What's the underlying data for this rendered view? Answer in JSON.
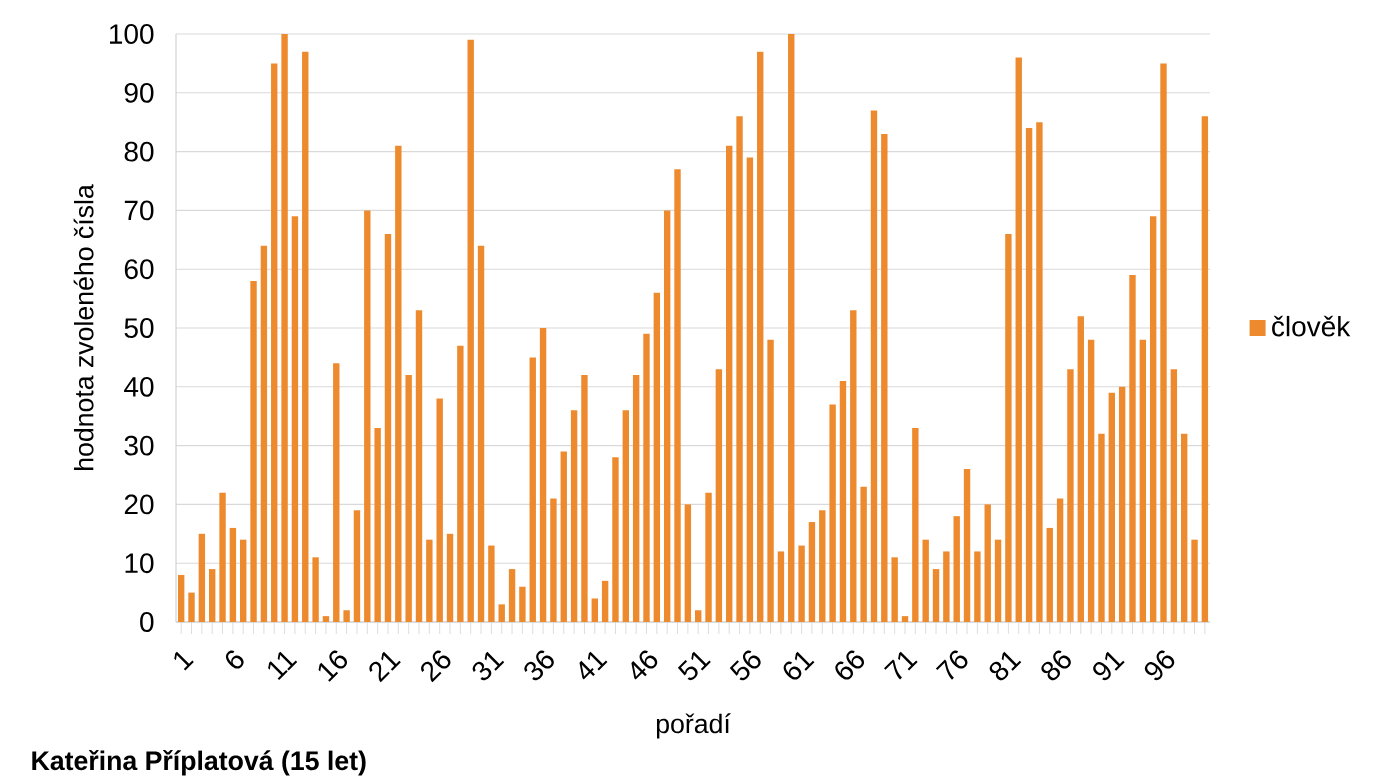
{
  "chart_data": {
    "type": "bar",
    "categories": [
      "1",
      null,
      null,
      null,
      null,
      "6",
      null,
      null,
      null,
      null,
      "11",
      null,
      null,
      null,
      null,
      "16",
      null,
      null,
      null,
      null,
      "21",
      null,
      null,
      null,
      null,
      "26",
      null,
      null,
      null,
      null,
      "31",
      null,
      null,
      null,
      null,
      "36",
      null,
      null,
      null,
      null,
      "41",
      null,
      null,
      null,
      null,
      "46",
      null,
      null,
      null,
      null,
      "51",
      null,
      null,
      null,
      null,
      "56",
      null,
      null,
      null,
      null,
      "61",
      null,
      null,
      null,
      null,
      "66",
      null,
      null,
      null,
      null,
      "71",
      null,
      null,
      null,
      null,
      "76",
      null,
      null,
      null,
      null,
      "81",
      null,
      null,
      null,
      null,
      "86",
      null,
      null,
      null,
      null,
      "91",
      null,
      null,
      null,
      null,
      "96",
      null,
      null,
      null,
      null
    ],
    "series": [
      {
        "name": "člověk",
        "color": "#ee8a2e",
        "values": [
          8,
          5,
          15,
          9,
          22,
          16,
          14,
          58,
          64,
          95,
          100,
          69,
          97,
          11,
          1,
          44,
          2,
          19,
          70,
          33,
          66,
          81,
          42,
          53,
          14,
          38,
          15,
          47,
          99,
          64,
          13,
          3,
          9,
          6,
          45,
          50,
          21,
          29,
          36,
          42,
          4,
          7,
          28,
          36,
          42,
          49,
          56,
          70,
          77,
          20,
          2,
          22,
          43,
          81,
          86,
          79,
          97,
          48,
          12,
          100,
          13,
          17,
          19,
          37,
          41,
          53,
          23,
          87,
          83,
          11,
          1,
          33,
          14,
          9,
          12,
          18,
          26,
          12,
          20,
          14,
          66,
          96,
          84,
          85,
          16,
          21,
          43,
          52,
          48,
          32,
          39,
          40,
          59,
          48,
          69,
          95,
          43,
          32,
          14,
          86
        ]
      }
    ],
    "xlabel": "pořadí",
    "ylabel": "hodnota zvoleného čísla",
    "ylim": [
      0,
      100
    ],
    "yticks": [
      0,
      10,
      20,
      30,
      40,
      50,
      60,
      70,
      80,
      90,
      100
    ],
    "grid": "y",
    "legend": "right",
    "annotations": [
      "Kateřina Příplatová (15 let)"
    ]
  }
}
